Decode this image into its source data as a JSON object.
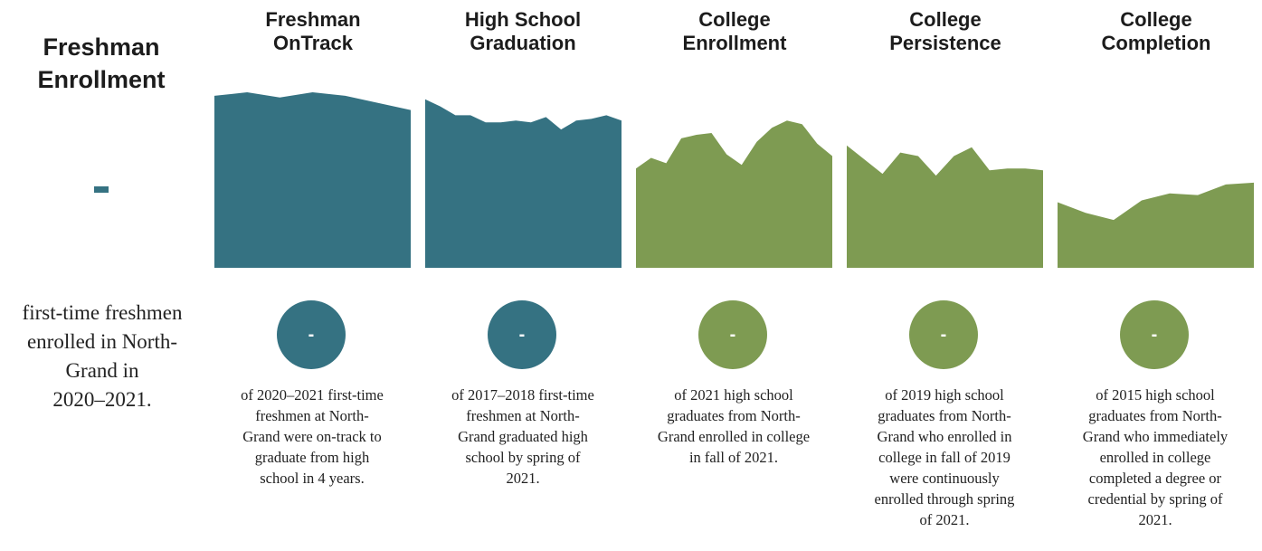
{
  "freshman": {
    "title": "Freshman\nEnrollment",
    "value": "-",
    "description": "first-time freshmen\nenrolled in North-\nGrand in\n2020–2021."
  },
  "colors": {
    "teal": "#357282",
    "green": "#7e9b52"
  },
  "stages": [
    {
      "title": "Freshman\nOnTrack",
      "value": "-",
      "color": "teal",
      "description": "of 2020–2021 first-time\nfreshmen at North-\nGrand were on-track to\ngraduate from high\nschool in 4 years."
    },
    {
      "title": "High School\nGraduation",
      "value": "-",
      "color": "teal",
      "description": "of 2017–2018 first-time\nfreshmen at North-\nGrand graduated high\nschool by spring of\n2021."
    },
    {
      "title": "College\nEnrollment",
      "value": "-",
      "color": "green",
      "description": "of 2021 high school\ngraduates from North-\nGrand enrolled in college\nin fall of 2021."
    },
    {
      "title": "College\nPersistence",
      "value": "-",
      "color": "green",
      "description": "of 2019 high school\ngraduates from North-\nGrand who enrolled in\ncollege in fall of 2019\nwere continuously\nenrolled through spring\nof 2021."
    },
    {
      "title": "College\nCompletion",
      "value": "-",
      "color": "green",
      "description": "of 2015 high school\ngraduates from North-\nGrand who immediately\nenrolled in college\ncompleted a degree or\ncredential by spring of\n2021."
    }
  ],
  "chart_data": {
    "type": "area",
    "ylim": [
      0,
      100
    ],
    "series": [
      {
        "values": [
          97,
          99,
          96,
          99,
          97,
          93,
          89
        ]
      },
      {
        "values": [
          95,
          91,
          86,
          86,
          82,
          82,
          83,
          82,
          85,
          78,
          83,
          84,
          86,
          83
        ]
      },
      {
        "values": [
          56,
          62,
          59,
          73,
          75,
          76,
          64,
          58,
          71,
          79,
          83,
          81,
          70,
          63
        ]
      },
      {
        "values": [
          69,
          61,
          53,
          65,
          63,
          52,
          63,
          68,
          55,
          56,
          56,
          55
        ]
      },
      {
        "values": [
          37,
          31,
          27,
          38,
          42,
          41,
          47,
          48
        ]
      }
    ]
  }
}
